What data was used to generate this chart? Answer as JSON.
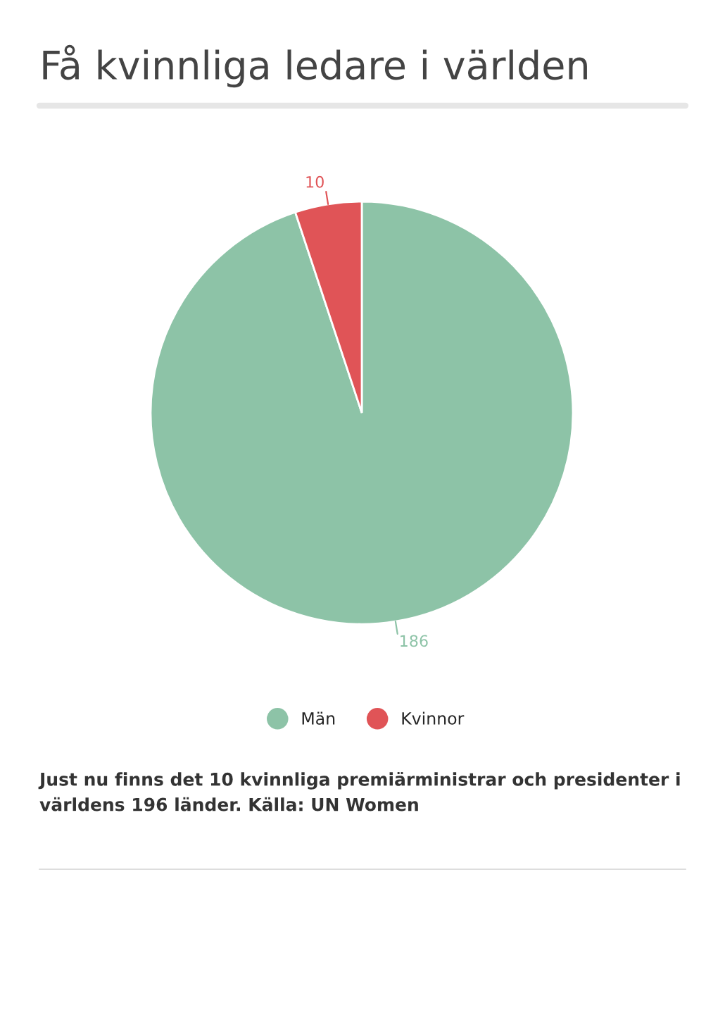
{
  "chart_data": {
    "type": "pie",
    "title": "Få kvinnliga ledare i världen",
    "categories": [
      "Män",
      "Kvinnor"
    ],
    "values": [
      186,
      10
    ],
    "colors": [
      "#8dc3a7",
      "#e05457"
    ],
    "data_labels": true,
    "legend": "bottom",
    "annotations": [
      "Just nu finns det 10 kvinnliga premiärministrar och presidenter i världens 196 länder. Källa: UN Women"
    ]
  }
}
